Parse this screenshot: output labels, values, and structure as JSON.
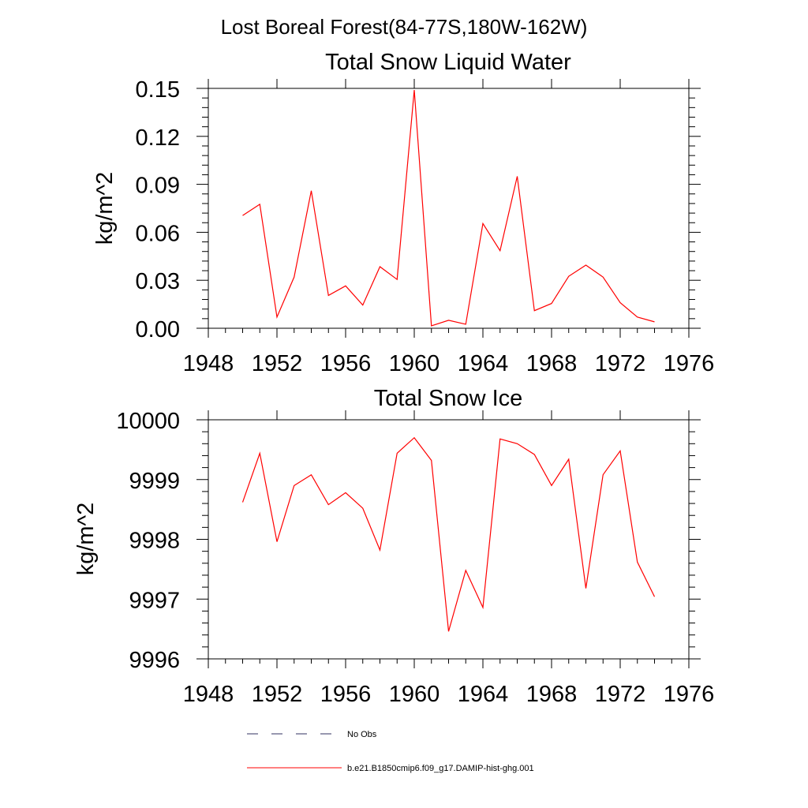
{
  "figure": {
    "suptitle": "Lost Boreal Forest(84-77S,180W-162W)"
  },
  "chart_data": [
    {
      "type": "line",
      "title": "Total Snow Liquid Water",
      "ylabel": "kg/m^2",
      "xlabel": "",
      "xlim": [
        1948,
        1976
      ],
      "ylim": [
        0.0,
        0.15
      ],
      "xticks": [
        1948,
        1952,
        1956,
        1960,
        1964,
        1968,
        1972,
        1976
      ],
      "xtick_labels": [
        "1948",
        "1952",
        "1956",
        "1960",
        "1964",
        "1968",
        "1972",
        "1976"
      ],
      "yticks": [
        0.0,
        0.03,
        0.06,
        0.09,
        0.12,
        0.15
      ],
      "ytick_labels": [
        "0.00",
        "0.03",
        "0.06",
        "0.09",
        "0.12",
        "0.15"
      ],
      "x": [
        1950,
        1951,
        1952,
        1953,
        1954,
        1955,
        1956,
        1957,
        1958,
        1959,
        1960,
        1961,
        1962,
        1963,
        1964,
        1965,
        1966,
        1967,
        1968,
        1969,
        1970,
        1971,
        1972,
        1973,
        1974
      ],
      "series": [
        {
          "name": "b.e21.B1850cmip6.f09_g17.DAMIP-hist-ghg.001",
          "color": "#ff0000",
          "values": [
            0.0705,
            0.0775,
            0.007,
            0.032,
            0.086,
            0.0205,
            0.0265,
            0.0145,
            0.0385,
            0.0305,
            0.149,
            0.0015,
            0.005,
            0.0025,
            0.0655,
            0.0485,
            0.095,
            0.011,
            0.0155,
            0.0325,
            0.0395,
            0.032,
            0.016,
            0.007,
            0.004
          ]
        }
      ],
      "grid": false
    },
    {
      "type": "line",
      "title": "Total Snow Ice",
      "ylabel": "kg/m^2",
      "xlabel": "",
      "xlim": [
        1948,
        1976
      ],
      "ylim": [
        9996,
        10000
      ],
      "xticks": [
        1948,
        1952,
        1956,
        1960,
        1964,
        1968,
        1972,
        1976
      ],
      "xtick_labels": [
        "1948",
        "1952",
        "1956",
        "1960",
        "1964",
        "1968",
        "1972",
        "1976"
      ],
      "yticks": [
        9996,
        9997,
        9998,
        9999,
        10000
      ],
      "ytick_labels": [
        "9996",
        "9997",
        "9998",
        "9999",
        "10000"
      ],
      "x": [
        1950,
        1951,
        1952,
        1953,
        1954,
        1955,
        1956,
        1957,
        1958,
        1959,
        1960,
        1961,
        1962,
        1963,
        1964,
        1965,
        1966,
        1967,
        1968,
        1969,
        1970,
        1971,
        1972,
        1973,
        1974
      ],
      "series": [
        {
          "name": "b.e21.B1850cmip6.f09_g17.DAMIP-hist-ghg.001",
          "color": "#ff0000",
          "values": [
            9998.62,
            9999.44,
            9997.96,
            9998.9,
            9999.08,
            9998.58,
            9998.78,
            9998.52,
            9997.82,
            9999.44,
            9999.7,
            9999.32,
            9996.46,
            9997.48,
            9996.86,
            9999.68,
            9999.6,
            9999.42,
            9998.9,
            9999.34,
            9997.18,
            9999.08,
            9999.48,
            9997.62,
            9997.04
          ]
        }
      ],
      "grid": false
    }
  ],
  "legend": {
    "placement": "bottom",
    "items": [
      {
        "label": "No Obs",
        "style": "dashed",
        "color": "#303060"
      },
      {
        "label": "b.e21.B1850cmip6.f09_g17.DAMIP-hist-ghg.001",
        "style": "solid",
        "color": "#ff0000"
      }
    ]
  }
}
